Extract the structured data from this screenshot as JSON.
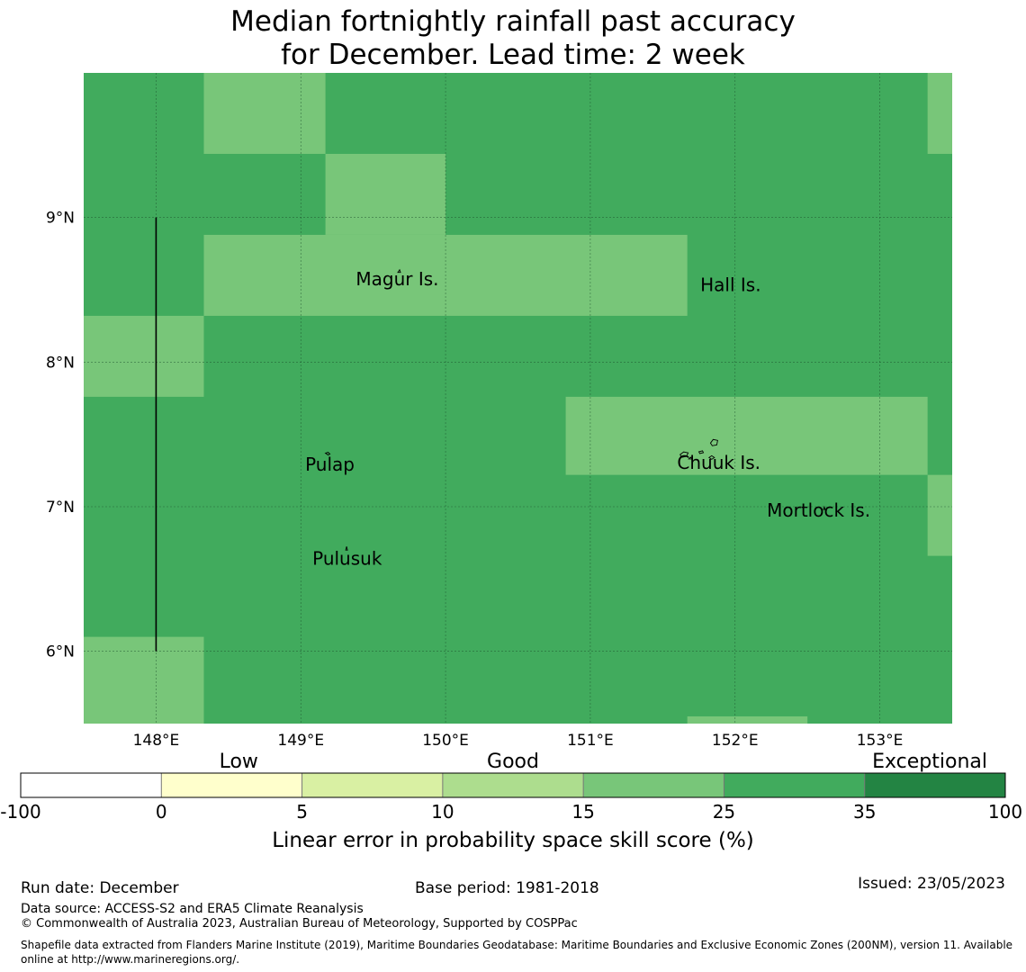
{
  "title_line1": "Median fortnightly rainfall past accuracy",
  "title_line2": "for December. Lead time: 2 week",
  "map": {
    "lon_range": [
      147.5,
      153.5
    ],
    "lat_range": [
      5.5,
      10.0
    ],
    "lon_ticks": [
      {
        "value": 148,
        "label": "148°E"
      },
      {
        "value": 149,
        "label": "149°E"
      },
      {
        "value": 150,
        "label": "150°E"
      },
      {
        "value": 151,
        "label": "151°E"
      },
      {
        "value": 152,
        "label": "152°E"
      },
      {
        "value": 153,
        "label": "153°E"
      }
    ],
    "lat_ticks": [
      {
        "value": 9,
        "label": "9°N"
      },
      {
        "value": 8,
        "label": "8°N"
      },
      {
        "value": 7,
        "label": "7°N"
      },
      {
        "value": 6,
        "label": "6°N"
      }
    ],
    "colors": {
      "class_25_35": "#41ab5d",
      "class_15_25": "#78c679",
      "grid": "#1a4d2a",
      "outline": "#000000"
    },
    "base_class": "class_25_35",
    "cells": [
      {
        "lon": [
          148.33,
          149.17
        ],
        "lat": [
          9.44,
          10.0
        ],
        "class": "class_15_25"
      },
      {
        "lon": [
          149.17,
          150.0
        ],
        "lat": [
          8.88,
          9.44
        ],
        "class": "class_15_25"
      },
      {
        "lon": [
          148.33,
          151.67
        ],
        "lat": [
          8.32,
          8.88
        ],
        "class": "class_15_25"
      },
      {
        "lon": [
          147.5,
          148.33
        ],
        "lat": [
          7.76,
          8.32
        ],
        "class": "class_15_25"
      },
      {
        "lon": [
          150.83,
          153.33
        ],
        "lat": [
          7.22,
          7.76
        ],
        "class": "class_15_25"
      },
      {
        "lon": [
          153.33,
          153.5
        ],
        "lat": [
          9.44,
          10.0
        ],
        "class": "class_15_25"
      },
      {
        "lon": [
          153.33,
          153.5
        ],
        "lat": [
          6.66,
          7.22
        ],
        "class": "class_15_25"
      },
      {
        "lon": [
          147.5,
          148.33
        ],
        "lat": [
          5.5,
          6.1
        ],
        "class": "class_15_25"
      },
      {
        "lon": [
          151.67,
          152.5
        ],
        "lat": [
          5.5,
          5.55
        ],
        "class": "class_15_25"
      }
    ],
    "boundary_line": {
      "lon": 148.0,
      "lat": [
        6.0,
        9.0
      ]
    },
    "places": [
      {
        "name": "Magur Is.",
        "lon": 149.38,
        "lat": 8.53
      },
      {
        "name": "Hall Is.",
        "lon": 151.76,
        "lat": 8.49
      },
      {
        "name": "Pulap",
        "lon": 149.03,
        "lat": 7.25
      },
      {
        "name": "Chuuk Is.",
        "lon": 151.6,
        "lat": 7.26
      },
      {
        "name": "Mortlock Is.",
        "lon": 152.22,
        "lat": 6.93
      },
      {
        "name": "Pulusuk",
        "lon": 149.08,
        "lat": 6.6
      }
    ]
  },
  "legend": {
    "categories": [
      "Low",
      "Good",
      "Exceptional"
    ],
    "ticks": [
      "-100",
      "0",
      "5",
      "10",
      "15",
      "25",
      "35",
      "100"
    ],
    "colors": [
      "#ffffff",
      "#ffffcc",
      "#d9f0a3",
      "#addd8e",
      "#78c679",
      "#41ab5d",
      "#238443"
    ],
    "label": "Linear error in probability space skill score (%)"
  },
  "footer": {
    "run_date": "Run date: December",
    "base_period": "Base period: 1981-2018",
    "issued": "Issued: 23/05/2023",
    "data_source": "Data source: ACCESS-S2 and ERA5 Climate Reanalysis",
    "copyright": "© Commonwealth of Australia 2023, Australian Bureau of Meteorology, Supported by COSPPac",
    "shapefile": "Shapefile data extracted from Flanders Marine Institute (2019), Maritime Boundaries Geodatabase: Maritime Boundaries and Exclusive Economic Zones (200NM), version 11. Available online at http://www.marineregions.org/."
  }
}
